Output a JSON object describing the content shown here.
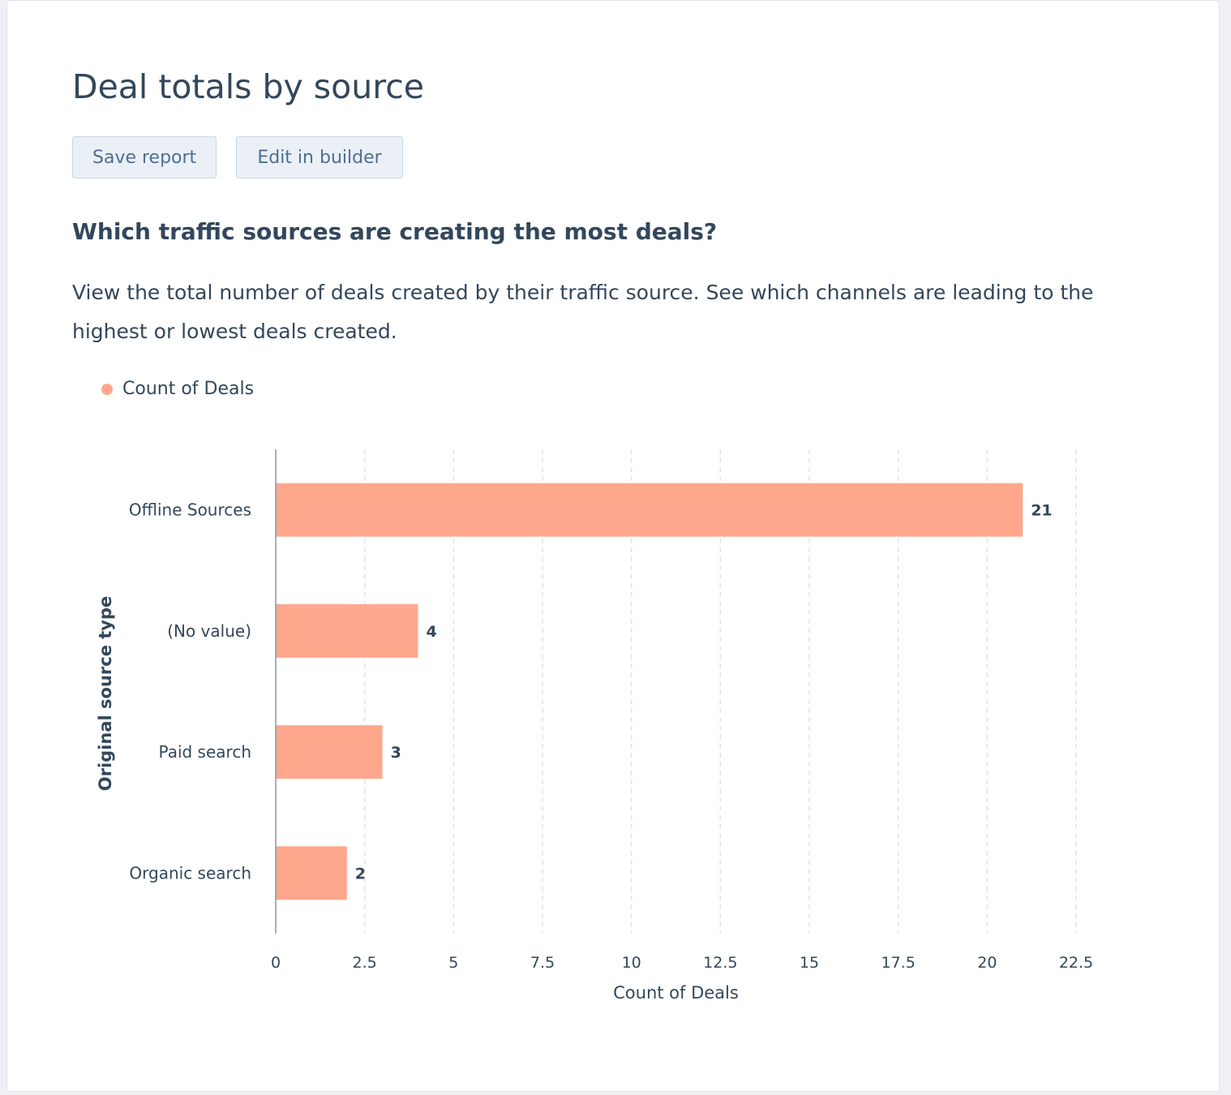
{
  "report": {
    "title": "Deal totals by source",
    "save_label": "Save report",
    "edit_label": "Edit in builder",
    "question": "Which traffic sources are creating the most deals?",
    "description": "View the total number of deals created by their traffic source. See which channels are leading to the highest or lowest deals created."
  },
  "colors": {
    "bar": "#ffa78c",
    "axis": "#7c98b6",
    "grid": "#dfe3eb"
  },
  "chart_data": {
    "type": "bar",
    "orientation": "horizontal",
    "categories": [
      "Offline Sources",
      "(No value)",
      "Paid search",
      "Organic search"
    ],
    "series": [
      {
        "name": "Count of Deals",
        "values": [
          21,
          4,
          3,
          2
        ]
      }
    ],
    "xlabel": "Count of Deals",
    "ylabel": "Original source type",
    "xlim": [
      0,
      22.5
    ],
    "xticks": [
      0,
      2.5,
      5,
      7.5,
      10,
      12.5,
      15,
      17.5,
      20,
      22.5
    ],
    "xtick_labels": [
      "0",
      "2.5",
      "5",
      "7.5",
      "10",
      "12.5",
      "15",
      "17.5",
      "20",
      "22.5"
    ],
    "grid": "vertical-dashed",
    "legend": "top-left",
    "data_labels": true
  }
}
